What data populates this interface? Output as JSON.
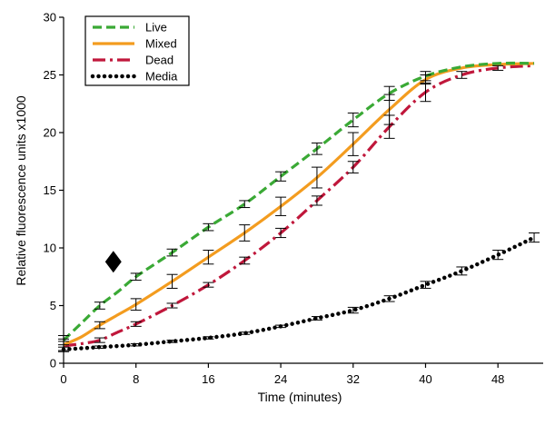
{
  "chart_data": {
    "type": "line",
    "title": "",
    "xlabel": "Time (minutes)",
    "ylabel": "Relative fluorescence units x1000",
    "xlim": [
      0,
      53
    ],
    "ylim": [
      0,
      30
    ],
    "xticks": [
      0,
      8,
      16,
      24,
      32,
      40,
      48
    ],
    "yticks": [
      0,
      5,
      10,
      15,
      20,
      25,
      30
    ],
    "legend_position": "top-left",
    "series": [
      {
        "name": "Live",
        "color": "#3aa935",
        "style": "dashed",
        "x": [
          0,
          2,
          4,
          6,
          8,
          12,
          16,
          20,
          24,
          28,
          32,
          36,
          40,
          44,
          48,
          52
        ],
        "y": [
          2.0,
          3.5,
          5.0,
          6.2,
          7.5,
          9.6,
          11.8,
          13.8,
          16.2,
          18.6,
          21.1,
          23.4,
          24.9,
          25.7,
          26.0,
          26.0
        ],
        "err": [
          0.4,
          0,
          0.3,
          0,
          0.3,
          0.3,
          0.3,
          0.3,
          0.4,
          0.5,
          0.6,
          0.6,
          0.4,
          0,
          0,
          0
        ]
      },
      {
        "name": "Mixed",
        "color": "#f39c1f",
        "style": "solid",
        "x": [
          0,
          2,
          4,
          6,
          8,
          12,
          16,
          20,
          24,
          28,
          32,
          36,
          40,
          44,
          48,
          52
        ],
        "y": [
          1.6,
          2.3,
          3.3,
          4.2,
          5.1,
          7.1,
          9.2,
          11.3,
          13.6,
          16.1,
          19.0,
          22.0,
          24.6,
          25.6,
          25.9,
          26.0
        ],
        "err": [
          0.5,
          0,
          0.3,
          0,
          0.5,
          0.6,
          0.6,
          0.7,
          0.8,
          0.9,
          1.0,
          1.3,
          0.4,
          0,
          0,
          0
        ]
      },
      {
        "name": "Dead",
        "color": "#c0173b",
        "style": "dashdot",
        "x": [
          0,
          2,
          4,
          6,
          8,
          12,
          16,
          20,
          24,
          28,
          32,
          36,
          40,
          44,
          48,
          52
        ],
        "y": [
          1.5,
          1.7,
          2.0,
          2.7,
          3.4,
          5.0,
          6.8,
          8.9,
          11.3,
          14.1,
          17.0,
          20.5,
          23.5,
          25.0,
          25.6,
          25.8
        ],
        "err": [
          0.4,
          0,
          0.2,
          0,
          0.2,
          0.2,
          0.2,
          0.3,
          0.4,
          0.4,
          0.5,
          1.0,
          0.8,
          0.3,
          0.2,
          0
        ]
      },
      {
        "name": "Media",
        "color": "#000000",
        "style": "dotted",
        "x": [
          0,
          4,
          8,
          12,
          16,
          20,
          24,
          28,
          32,
          36,
          40,
          44,
          48,
          52
        ],
        "y": [
          1.2,
          1.4,
          1.6,
          1.9,
          2.2,
          2.6,
          3.2,
          3.9,
          4.6,
          5.6,
          6.8,
          8.0,
          9.4,
          10.9
        ],
        "err": [
          0.2,
          0.1,
          0.1,
          0.1,
          0.1,
          0.1,
          0.1,
          0.15,
          0.25,
          0.25,
          0.3,
          0.35,
          0.4,
          0.4
        ]
      }
    ],
    "annotations": [
      {
        "type": "diamond-marker",
        "x": 5.5,
        "y": 8.8,
        "color": "#000000"
      }
    ]
  }
}
